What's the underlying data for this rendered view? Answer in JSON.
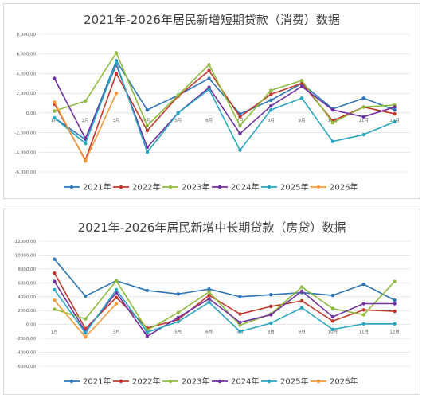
{
  "charts": [
    {
      "title": "2021年-2026年居民新增短期贷款（消费）数据",
      "y_tick_labels": [
        "8,000.00",
        "6,000.00",
        "4,000.00",
        "2,000.00",
        "0.00",
        "-2,000.00",
        "-4,000.00",
        "-6,000.00"
      ],
      "x_tick_labels": [
        "1月",
        "2月",
        "3月",
        "4月",
        "5月",
        "6月",
        "7月",
        "8月",
        "9月",
        "10月",
        "11月",
        "12月"
      ]
    },
    {
      "title": "2021年-2026年居民新增中长期贷款（房贷）数据",
      "y_tick_labels": [
        "12000.00",
        "10000.00",
        "8000.00",
        "6000.00",
        "4000.00",
        "2000.00",
        "0.00",
        "-2000.00",
        "-4000.00",
        "-6000.00"
      ],
      "x_tick_labels": [
        "1月",
        "2月",
        "3月",
        "4月",
        "5月",
        "6月",
        "7月",
        "8月",
        "9月",
        "10月",
        "11月",
        "12月"
      ]
    }
  ],
  "chart_data": [
    {
      "type": "line",
      "title": "2021年-2026年居民新增短期贷款（消费）数据",
      "categories": [
        "1月",
        "2月",
        "3月",
        "4月",
        "5月",
        "6月",
        "7月",
        "8月",
        "9月",
        "10月",
        "11月",
        "12月"
      ],
      "ylim": [
        -6000,
        8000
      ],
      "grid": true,
      "legend": "bottom",
      "series": [
        {
          "name": "2021年",
          "color": "#2e75b6",
          "values": [
            -500,
            -2700,
            5300,
            300,
            1800,
            3500,
            -100,
            1300,
            3000,
            400,
            1500,
            300
          ]
        },
        {
          "name": "2022年",
          "color": "#c0392b",
          "values": [
            900,
            -4800,
            4000,
            -1800,
            1700,
            4300,
            -400,
            1900,
            3000,
            -800,
            600,
            -100
          ]
        },
        {
          "name": "2023年",
          "color": "#8fbc3f",
          "values": [
            200,
            1200,
            6100,
            -1300,
            1800,
            4900,
            -1300,
            2300,
            3300,
            -1000,
            600,
            800
          ]
        },
        {
          "name": "2024年",
          "color": "#7030a0",
          "values": [
            3500,
            -2600,
            4900,
            -3500,
            0,
            2600,
            -2100,
            700,
            2700,
            300,
            -400,
            600
          ]
        },
        {
          "name": "2025年",
          "color": "#2aa6c0",
          "values": [
            -500,
            -3100,
            5100,
            -4000,
            0,
            2400,
            -3800,
            300,
            1500,
            -2900,
            -2200,
            -900
          ]
        },
        {
          "name": "2026年",
          "color": "#f39c3c",
          "values": [
            1100,
            -4900,
            2000,
            null,
            null,
            null,
            null,
            null,
            null,
            null,
            null,
            null
          ]
        }
      ]
    },
    {
      "type": "line",
      "title": "2021年-2026年居民新增中长期贷款（房贷）数据",
      "categories": [
        "1月",
        "2月",
        "3月",
        "4月",
        "5月",
        "6月",
        "7月",
        "8月",
        "9月",
        "10月",
        "11月",
        "12月"
      ],
      "ylim": [
        -6000,
        12000
      ],
      "grid": true,
      "legend": "bottom",
      "series": [
        {
          "name": "2021年",
          "color": "#2e75b6",
          "values": [
            9400,
            4100,
            6300,
            4900,
            4400,
            5100,
            4000,
            4300,
            4600,
            4200,
            5800,
            3500
          ]
        },
        {
          "name": "2022年",
          "color": "#c0392b",
          "values": [
            7400,
            -600,
            3900,
            -500,
            700,
            4200,
            1500,
            2600,
            3400,
            500,
            2100,
            1900
          ]
        },
        {
          "name": "2023年",
          "color": "#8fbc3f",
          "values": [
            2200,
            800,
            6300,
            -800,
            1700,
            4700,
            -100,
            1500,
            5400,
            2300,
            1400,
            6200
          ]
        },
        {
          "name": "2024年",
          "color": "#7030a0",
          "values": [
            6200,
            -1000,
            4600,
            -1700,
            1000,
            3700,
            300,
            1400,
            4800,
            1100,
            3000,
            3000
          ]
        },
        {
          "name": "2025年",
          "color": "#2aa6c0",
          "values": [
            5000,
            -1200,
            5000,
            -1100,
            400,
            3200,
            -1000,
            200,
            2400,
            -700,
            100,
            100
          ]
        },
        {
          "name": "2026年",
          "color": "#f39c3c",
          "values": [
            3500,
            -1800,
            3000,
            null,
            null,
            null,
            null,
            null,
            null,
            null,
            null,
            null
          ]
        }
      ]
    }
  ]
}
